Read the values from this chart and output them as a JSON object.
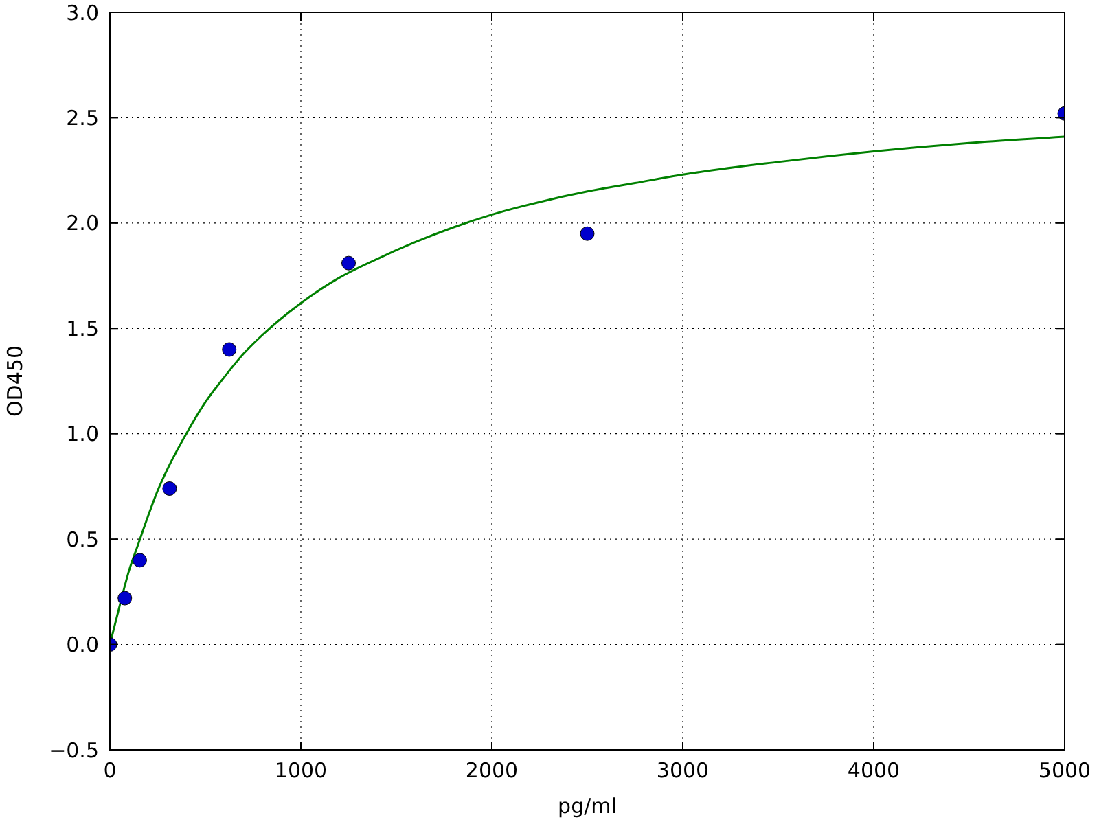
{
  "chart_data": {
    "type": "scatter",
    "xlabel": "pg/ml",
    "ylabel": "OD450",
    "xlim": [
      0,
      5000
    ],
    "xticks": [
      0,
      1000,
      2000,
      3000,
      4000,
      5000
    ],
    "ylim": [
      -0.5,
      3.0
    ],
    "yticks": [
      {
        "value": -0.5,
        "label": "−0.5"
      },
      {
        "value": 0,
        "label": "0.0"
      },
      0.5,
      {
        "value": 1,
        "label": "1.0"
      },
      1.5,
      {
        "value": 2,
        "label": "2.0"
      },
      2.5,
      {
        "value": 3,
        "label": "3.0"
      }
    ],
    "grid": true,
    "series": [
      {
        "type": "line",
        "color": "#008000",
        "marker": "none",
        "line_style": "solid",
        "x": [
          0,
          50,
          100,
          150,
          200,
          250,
          300,
          400,
          500,
          600,
          700,
          800,
          1000,
          1200,
          1400,
          1600,
          1800,
          2000,
          2250,
          2500,
          2750,
          3000,
          3500,
          4000,
          4500,
          5000
        ],
        "values": [
          0,
          0.18,
          0.35,
          0.48,
          0.61,
          0.73,
          0.83,
          1.0,
          1.15,
          1.27,
          1.38,
          1.47,
          1.62,
          1.74,
          1.83,
          1.91,
          1.98,
          2.04,
          2.1,
          2.15,
          2.19,
          2.23,
          2.29,
          2.34,
          2.38,
          2.41
        ]
      },
      {
        "color": "#0000cc",
        "marker": "circle",
        "x": [
          0,
          78.125,
          156.25,
          312.5,
          625,
          1250,
          2500,
          5000
        ],
        "values": [
          0.0,
          0.22,
          0.4,
          0.74,
          1.4,
          1.81,
          1.95,
          2.52
        ]
      }
    ]
  }
}
